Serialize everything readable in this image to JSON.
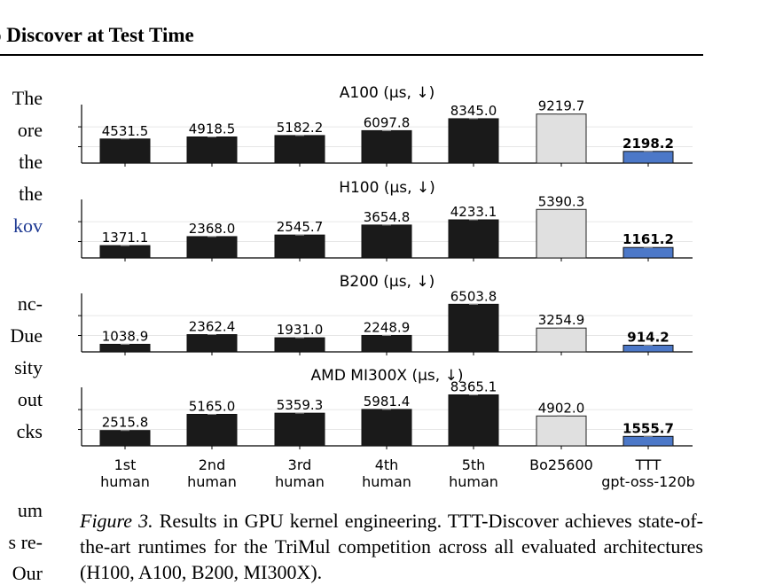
{
  "page": {
    "header_title": "o Discover at Test Time",
    "left_column_fragments": [
      {
        "text": "The",
        "link": false
      },
      {
        "text": "ore",
        "link": false
      },
      {
        "text": "the",
        "link": false
      },
      {
        "text": "the",
        "link": false
      },
      {
        "text": "kov",
        "link": true
      },
      {
        "text": "nc-",
        "link": false
      },
      {
        "text": "Due",
        "link": false
      },
      {
        "text": "sity",
        "link": false
      },
      {
        "text": "out",
        "link": false
      },
      {
        "text": "cks",
        "link": false
      },
      {
        "text": "um",
        "link": false
      },
      {
        "text": "s re-",
        "link": false
      },
      {
        "text": "Our",
        "link": false
      }
    ],
    "caption_label": "Figure 3.",
    "caption_text": "Results in GPU kernel engineering. TTT-Discover achieves state-of-the-art runtimes for the TriMul competition across all evaluated architectures (H100, A100, B200, MI300X)."
  },
  "chart_data": [
    {
      "type": "bar",
      "title": "A100 (μs, ↓)",
      "categories": [
        "1st\nhuman",
        "2nd\nhuman",
        "3rd\nhuman",
        "4th\nhuman",
        "5th\nhuman",
        "Bo25600",
        "TTT\ngpt-oss-120b"
      ],
      "values": [
        4531.5,
        4918.5,
        5182.2,
        6097.8,
        8345.0,
        9219.7,
        2198.2
      ],
      "labels": [
        "4531.5",
        "4918.5",
        "5182.2",
        "6097.8",
        "8345.0",
        "9219.7",
        "2198.2"
      ],
      "ylim": [
        0,
        11000
      ],
      "grid": true
    },
    {
      "type": "bar",
      "title": "H100 (μs, ↓)",
      "categories": [
        "1st\nhuman",
        "2nd\nhuman",
        "3rd\nhuman",
        "4th\nhuman",
        "5th\nhuman",
        "Bo25600",
        "TTT\ngpt-oss-120b"
      ],
      "values": [
        1371.1,
        2368.0,
        2545.7,
        3654.8,
        4233.1,
        5390.3,
        1161.2
      ],
      "labels": [
        "1371.1",
        "2368.0",
        "2545.7",
        "3654.8",
        "4233.1",
        "5390.3",
        "1161.2"
      ],
      "ylim": [
        0,
        6500
      ],
      "grid": true
    },
    {
      "type": "bar",
      "title": "B200 (μs, ↓)",
      "categories": [
        "1st\nhuman",
        "2nd\nhuman",
        "3rd\nhuman",
        "4th\nhuman",
        "5th\nhuman",
        "Bo25600",
        "TTT\ngpt-oss-120b"
      ],
      "values": [
        1038.9,
        2362.4,
        1931.0,
        2248.9,
        6503.8,
        3254.9,
        914.2
      ],
      "labels": [
        "1038.9",
        "2362.4",
        "1931.0",
        "2248.9",
        "6503.8",
        "3254.9",
        "914.2"
      ],
      "ylim": [
        0,
        8000
      ],
      "grid": true
    },
    {
      "type": "bar",
      "title": "AMD MI300X (μs, ↓)",
      "categories": [
        "1st\nhuman",
        "2nd\nhuman",
        "3rd\nhuman",
        "4th\nhuman",
        "5th\nhuman",
        "Bo25600",
        "TTT\ngpt-oss-120b"
      ],
      "values": [
        2515.8,
        5165.0,
        5359.3,
        5981.4,
        8365.1,
        4902.0,
        1555.7
      ],
      "labels": [
        "2515.8",
        "5165.0",
        "5359.3",
        "5981.4",
        "8365.1",
        "4902.0",
        "1555.7"
      ],
      "ylim": [
        0,
        9600
      ],
      "grid": true
    }
  ],
  "colors": {
    "human_bar": "#1a1a1a",
    "baseline_bar": "#e0e0e0",
    "ttt_bar": "#4c78c8",
    "grid": "#e6e6e6"
  }
}
